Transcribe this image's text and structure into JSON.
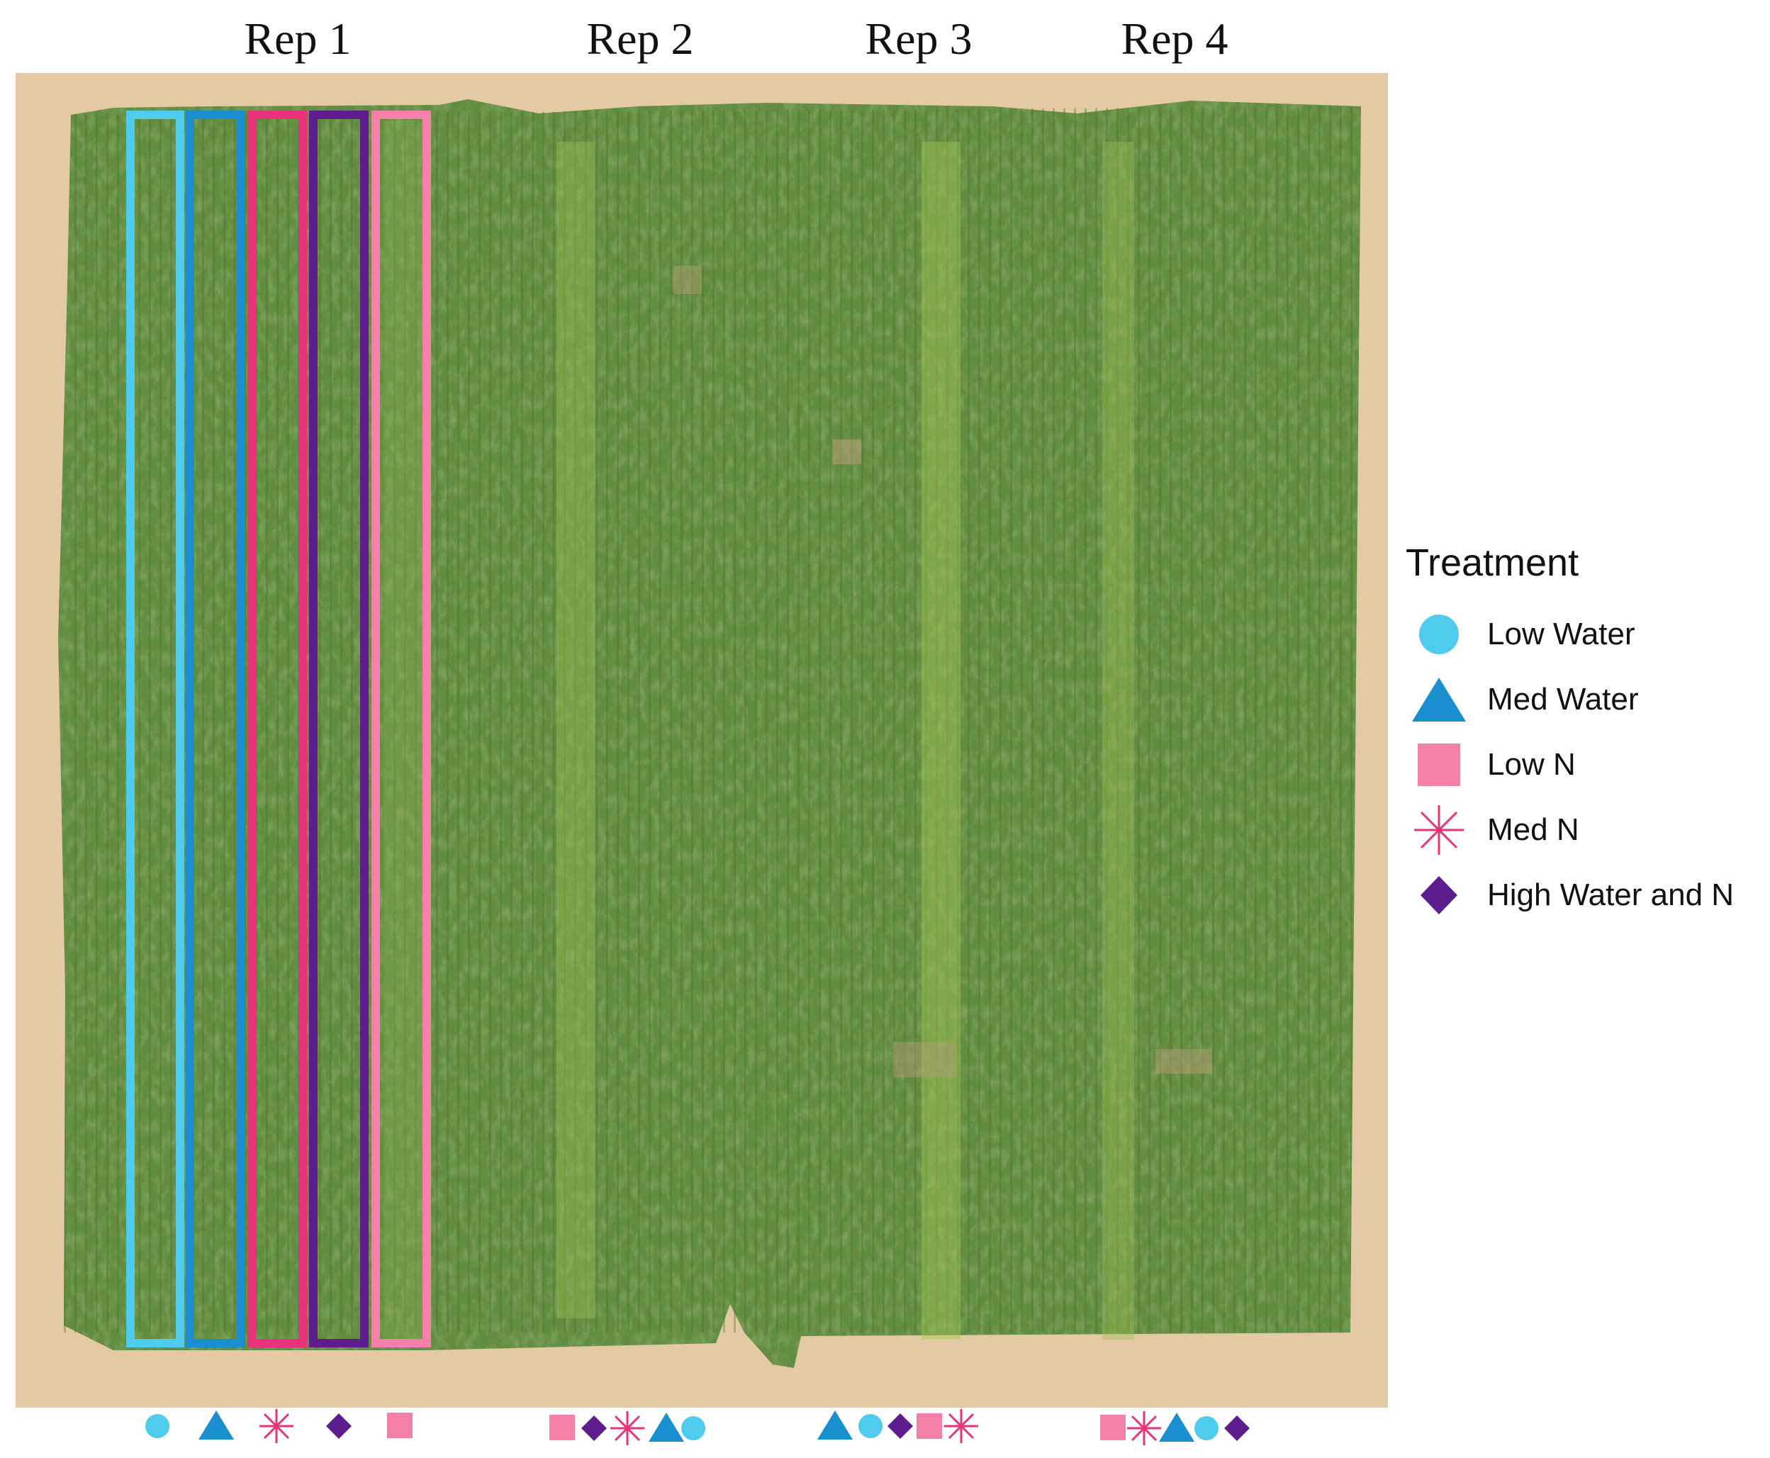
{
  "reps": [
    "Rep 1",
    "Rep 2",
    "Rep 3",
    "Rep 4"
  ],
  "legend": {
    "title": "Treatment",
    "items": [
      {
        "key": "low-water",
        "label": "Low Water",
        "shape": "circle",
        "color": "#4fcbee"
      },
      {
        "key": "med-water",
        "label": "Med Water",
        "shape": "triangle",
        "color": "#1a8fd0"
      },
      {
        "key": "low-n",
        "label": "Low N",
        "shape": "square",
        "color": "#f47fa8"
      },
      {
        "key": "med-n",
        "label": "Med N",
        "shape": "asterisk",
        "color": "#e8327a"
      },
      {
        "key": "high-water-n",
        "label": "High Water and N",
        "shape": "diamond",
        "color": "#5e1d8c"
      }
    ]
  },
  "plot_order": {
    "rep1": [
      "low-water",
      "med-water",
      "med-n",
      "high-water-n",
      "low-n"
    ],
    "rep2": [
      "low-n",
      "high-water-n",
      "med-n",
      "med-water",
      "low-water"
    ],
    "rep3": [
      "med-water",
      "low-water",
      "high-water-n",
      "low-n",
      "med-n"
    ],
    "rep4": [
      "low-n",
      "med-n",
      "med-water",
      "low-water",
      "high-water-n"
    ]
  },
  "colors": {
    "soil": "#e2c9a3",
    "canopy": "#5f8a3e"
  }
}
